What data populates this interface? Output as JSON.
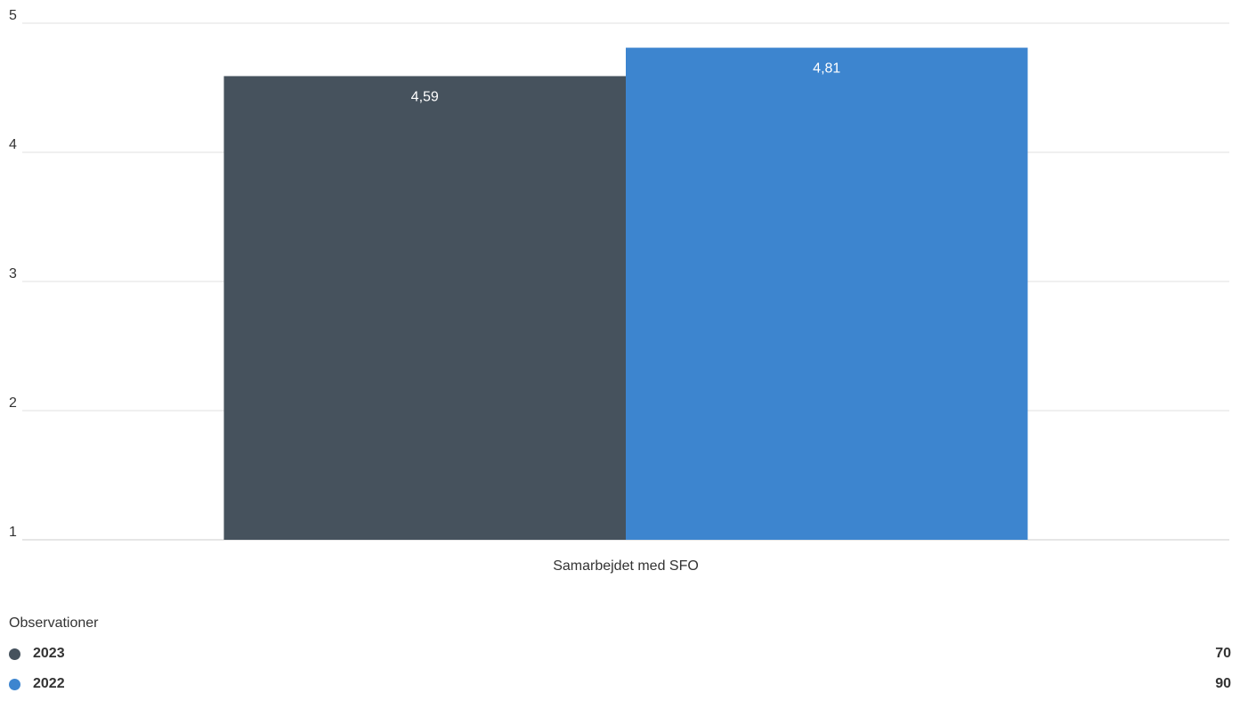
{
  "chart_data": {
    "type": "bar",
    "categories": [
      "Samarbejdet med SFO"
    ],
    "series": [
      {
        "name": "2023",
        "values": [
          4.59
        ],
        "labels": [
          "4,59"
        ],
        "color": "#46525d"
      },
      {
        "name": "2022",
        "values": [
          4.81
        ],
        "labels": [
          "4,81"
        ],
        "color": "#3d85cf"
      }
    ],
    "ylim": [
      1,
      5
    ],
    "yticks": [
      "1",
      "2",
      "3",
      "4",
      "5"
    ],
    "grid": true
  },
  "observations": {
    "title": "Observationer",
    "rows": [
      {
        "name": "2023",
        "count": "70",
        "color": "#46525d"
      },
      {
        "name": "2022",
        "count": "90",
        "color": "#3d85cf"
      }
    ]
  }
}
